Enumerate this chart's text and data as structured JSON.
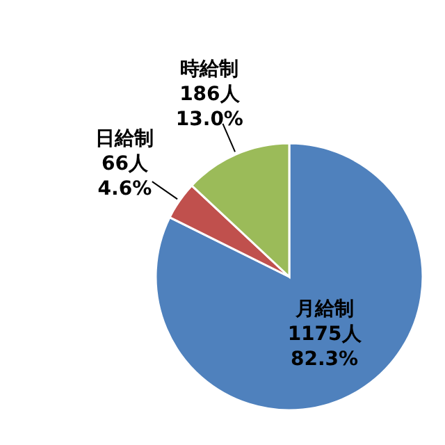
{
  "chart_data": {
    "type": "pie",
    "categories": [
      "月給制",
      "日給制",
      "時給制"
    ],
    "values": [
      1175,
      66,
      186
    ],
    "colors": [
      "#4f81bd",
      "#c0504d",
      "#9bbb59"
    ],
    "value_labels": [
      "1175人\n82.3%",
      "66人\n4.6%",
      "186人\n13.0%"
    ]
  }
}
